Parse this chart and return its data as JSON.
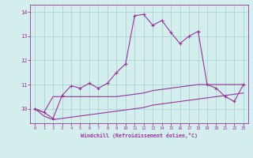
{
  "xlabel": "Windchill (Refroidissement éolien,°C)",
  "x": [
    0,
    1,
    2,
    3,
    4,
    5,
    6,
    7,
    8,
    9,
    10,
    11,
    12,
    13,
    14,
    15,
    16,
    17,
    18,
    19,
    20,
    21,
    22,
    23
  ],
  "line1": [
    10.0,
    9.85,
    9.6,
    10.55,
    10.95,
    10.85,
    11.05,
    10.85,
    11.05,
    11.5,
    11.85,
    13.85,
    13.9,
    13.45,
    13.65,
    13.15,
    12.7,
    13.0,
    13.2,
    11.0,
    10.85,
    10.5,
    10.3,
    11.0
  ],
  "line2": [
    10.0,
    9.85,
    10.5,
    10.5,
    10.5,
    10.5,
    10.5,
    10.5,
    10.5,
    10.5,
    10.55,
    10.6,
    10.65,
    10.75,
    10.8,
    10.85,
    10.9,
    10.95,
    11.0,
    11.0,
    11.0,
    11.0,
    11.0,
    11.0
  ],
  "line3": [
    10.0,
    9.7,
    9.55,
    9.6,
    9.65,
    9.7,
    9.75,
    9.8,
    9.85,
    9.9,
    9.95,
    10.0,
    10.05,
    10.15,
    10.2,
    10.25,
    10.3,
    10.35,
    10.4,
    10.45,
    10.5,
    10.55,
    10.6,
    10.65
  ],
  "line_color": "#993399",
  "bg_color": "#d4eeee",
  "grid_color": "#aad4d4",
  "ylim": [
    9.4,
    14.3
  ],
  "yticks": [
    10,
    11,
    12,
    13,
    14
  ],
  "figsize": [
    3.2,
    2.0
  ],
  "dpi": 100
}
